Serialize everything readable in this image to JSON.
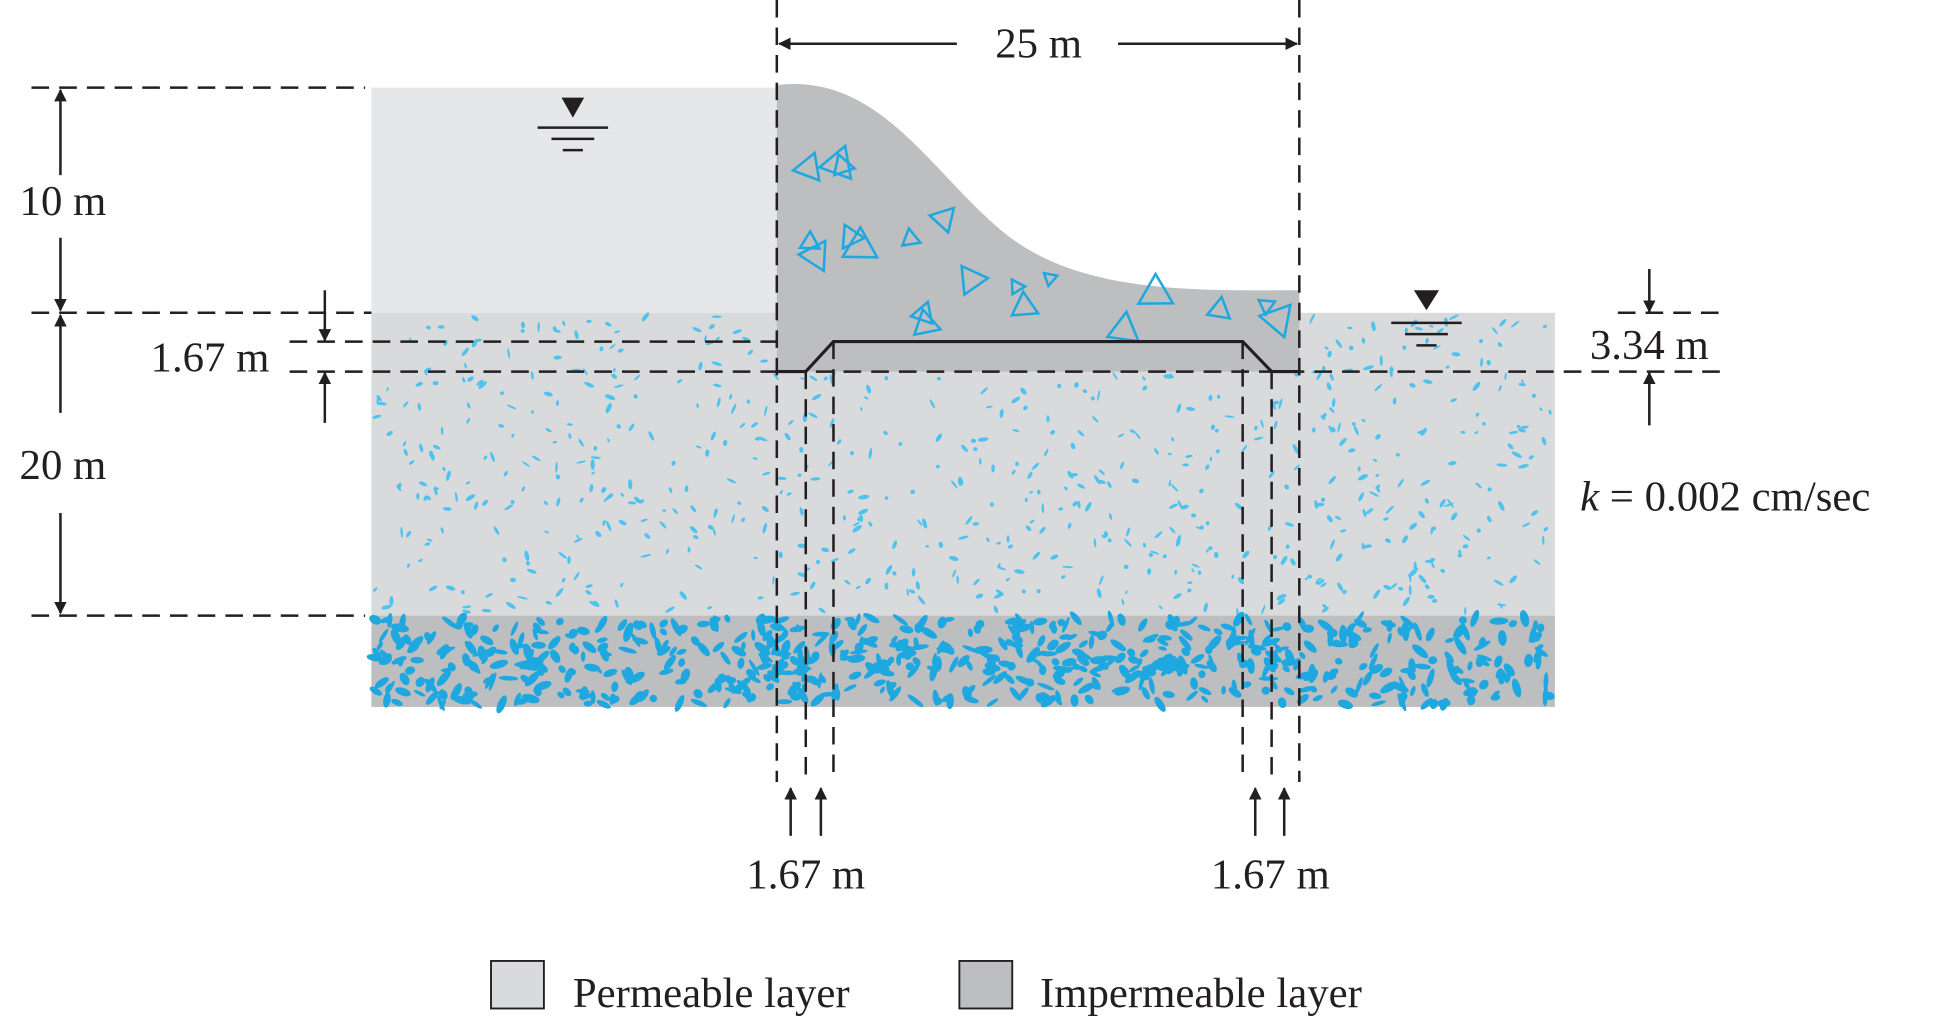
{
  "dimensions": {
    "width": "25 m",
    "upstream_water": "10 m",
    "pile_depth_left": "1.67 m",
    "permeable_thickness": "20 m",
    "pile_depth_right": "3.34 m",
    "pile_width_left": "1.67 m",
    "pile_width_right": "1.67 m"
  },
  "permeability": {
    "symbol": "k",
    "value": "= 0.002 cm/sec"
  },
  "legend": {
    "items": [
      "Permeable layer",
      "Impermeable layer"
    ]
  }
}
